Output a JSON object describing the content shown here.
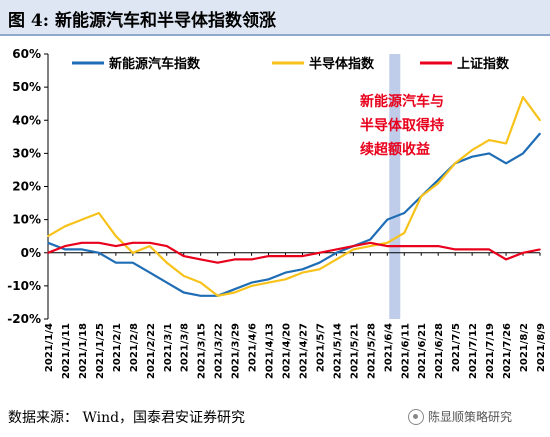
{
  "header": {
    "title": "图 4:  新能源汽车和半导体指数领涨"
  },
  "footer": {
    "source": "数据来源： Wind，国泰君安证券研究",
    "watermark": "陈显顺策略研究"
  },
  "chart_data": {
    "type": "line",
    "title": "",
    "xlabel": "",
    "ylabel": "",
    "ylim": [
      -20,
      60
    ],
    "yticks": [
      -20,
      -10,
      0,
      10,
      20,
      30,
      40,
      50,
      60
    ],
    "ytick_labels": [
      "-20%",
      "-10%",
      "0%",
      "10%",
      "20%",
      "30%",
      "40%",
      "50%",
      "60%"
    ],
    "x_labels": [
      "2021/1/4",
      "2021/1/11",
      "2021/1/18",
      "2021/1/25",
      "2021/2/1",
      "2021/2/8",
      "2021/2/22",
      "2021/3/1",
      "2021/3/8",
      "2021/3/15",
      "2021/3/22",
      "2021/3/29",
      "2021/4/6",
      "2021/4/13",
      "2021/4/20",
      "2021/4/27",
      "2021/5/7",
      "2021/5/14",
      "2021/5/21",
      "2021/5/28",
      "2021/6/4",
      "2021/6/11",
      "2021/6/21",
      "2021/6/28",
      "2021/7/5",
      "2021/7/12",
      "2021/7/19",
      "2021/7/26",
      "2021/8/2",
      "2021/8/9"
    ],
    "grid": false,
    "legend_position": "top",
    "highlight": {
      "from": "2021/6/4",
      "to": "2021/6/11",
      "color": "#b4c3e6"
    },
    "annotation": {
      "lines": [
        "新能源汽车与",
        "半导体取得持",
        "续超额收益"
      ],
      "color": "#e8001c"
    },
    "series": [
      {
        "name": "新能源汽车指数",
        "color": "#1f6db5",
        "values": [
          3,
          1,
          1,
          0,
          -3,
          -3,
          -6,
          -9,
          -12,
          -13,
          -13,
          -11,
          -9,
          -8,
          -6,
          -5,
          -3,
          0,
          2,
          4,
          10,
          12,
          17,
          22,
          27,
          29,
          30,
          27,
          30,
          36
        ]
      },
      {
        "name": "半导体指数",
        "color": "#f7c21a",
        "values": [
          5,
          8,
          10,
          12,
          5,
          0,
          2,
          -3,
          -7,
          -9,
          -13,
          -12,
          -10,
          -9,
          -8,
          -6,
          -5,
          -2,
          1,
          2,
          3,
          6,
          17,
          21,
          27,
          31,
          34,
          33,
          47,
          40
        ]
      },
      {
        "name": "上证指数",
        "color": "#e8001c",
        "values": [
          0,
          2,
          3,
          3,
          2,
          3,
          3,
          2,
          -1,
          -2,
          -3,
          -2,
          -2,
          -1,
          -1,
          -1,
          0,
          1,
          2,
          3,
          2,
          2,
          2,
          2,
          1,
          1,
          1,
          -2,
          0,
          1
        ]
      }
    ]
  }
}
